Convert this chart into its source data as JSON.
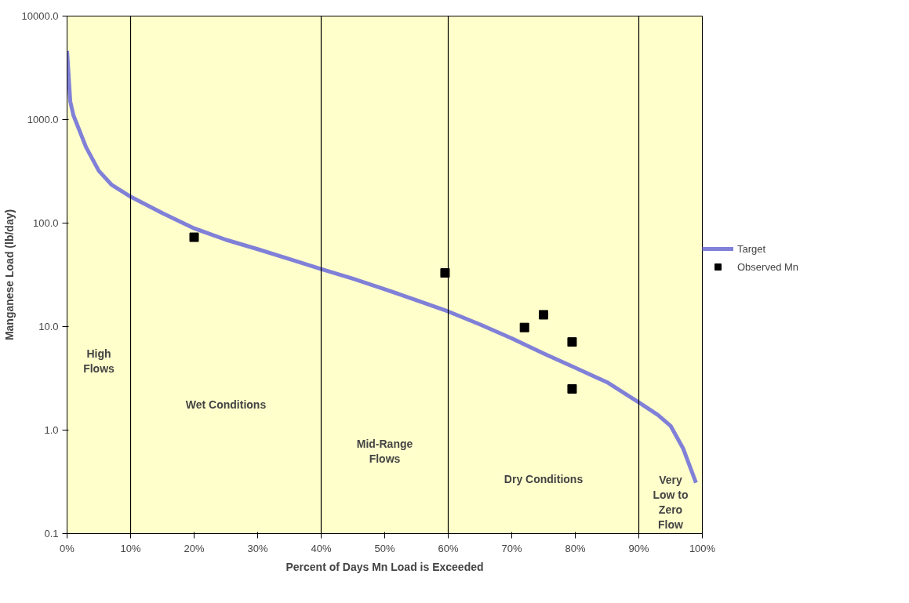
{
  "chart_data": {
    "type": "line",
    "xlabel": "Percent of Days Mn Load is Exceeded",
    "ylabel": "Manganese Load (lb/day)",
    "log": "y",
    "grid": false,
    "legend": "right",
    "xlim": [
      0,
      100
    ],
    "ylim": [
      0.1,
      10000
    ],
    "xticks": [
      {
        "value": 0,
        "label": "0%"
      },
      {
        "value": 10,
        "label": "10%"
      },
      {
        "value": 20,
        "label": "20%"
      },
      {
        "value": 30,
        "label": "30%"
      },
      {
        "value": 40,
        "label": "40%"
      },
      {
        "value": 50,
        "label": "50%"
      },
      {
        "value": 60,
        "label": "60%"
      },
      {
        "value": 70,
        "label": "70%"
      },
      {
        "value": 80,
        "label": "80%"
      },
      {
        "value": 90,
        "label": "90%"
      },
      {
        "value": 100,
        "label": "100%"
      }
    ],
    "yticks": [
      {
        "value": 0.1,
        "label": "0.1"
      },
      {
        "value": 1,
        "label": "1.0"
      },
      {
        "value": 10,
        "label": "10.0"
      },
      {
        "value": 100,
        "label": "100.0"
      },
      {
        "value": 1000,
        "label": "1000.0"
      },
      {
        "value": 10000,
        "label": "10000.0"
      }
    ],
    "series": [
      {
        "name": "Target",
        "color": "#8080d8",
        "marker": "none",
        "x": [
          0,
          0.5,
          1,
          3,
          5,
          7,
          10,
          15,
          20,
          25,
          30,
          35,
          40,
          45,
          50,
          55,
          60,
          65,
          70,
          75,
          80,
          85,
          90,
          93,
          95,
          97,
          99
        ],
        "values": [
          4600,
          1500,
          1100,
          540,
          320,
          235,
          180,
          125,
          89,
          69,
          56,
          45,
          36,
          29,
          23,
          18,
          14,
          10.5,
          7.7,
          5.5,
          4.0,
          2.9,
          1.85,
          1.4,
          1.1,
          0.66,
          0.31
        ]
      },
      {
        "name": "Observed Mn",
        "type": "scatter",
        "color": "#000000",
        "marker": "square",
        "x": [
          20,
          59.5,
          72,
          75,
          79.5,
          79.5
        ],
        "values": [
          73,
          33,
          9.8,
          13,
          7.1,
          2.5
        ]
      }
    ],
    "ref_lines": [
      {
        "axis": "x",
        "value": 10,
        "label": null,
        "color": "#000000"
      },
      {
        "axis": "x",
        "value": 40,
        "label": null,
        "color": "#000000"
      },
      {
        "axis": "x",
        "value": 60,
        "label": null,
        "color": "#000000"
      },
      {
        "axis": "x",
        "value": 90,
        "label": null,
        "color": "#000000"
      }
    ],
    "annotations": [
      "High\nFlows",
      "Wet Conditions",
      "Mid-Range\nFlows",
      "Dry Conditions",
      "Very\nLow to\nZero\nFlow"
    ]
  }
}
